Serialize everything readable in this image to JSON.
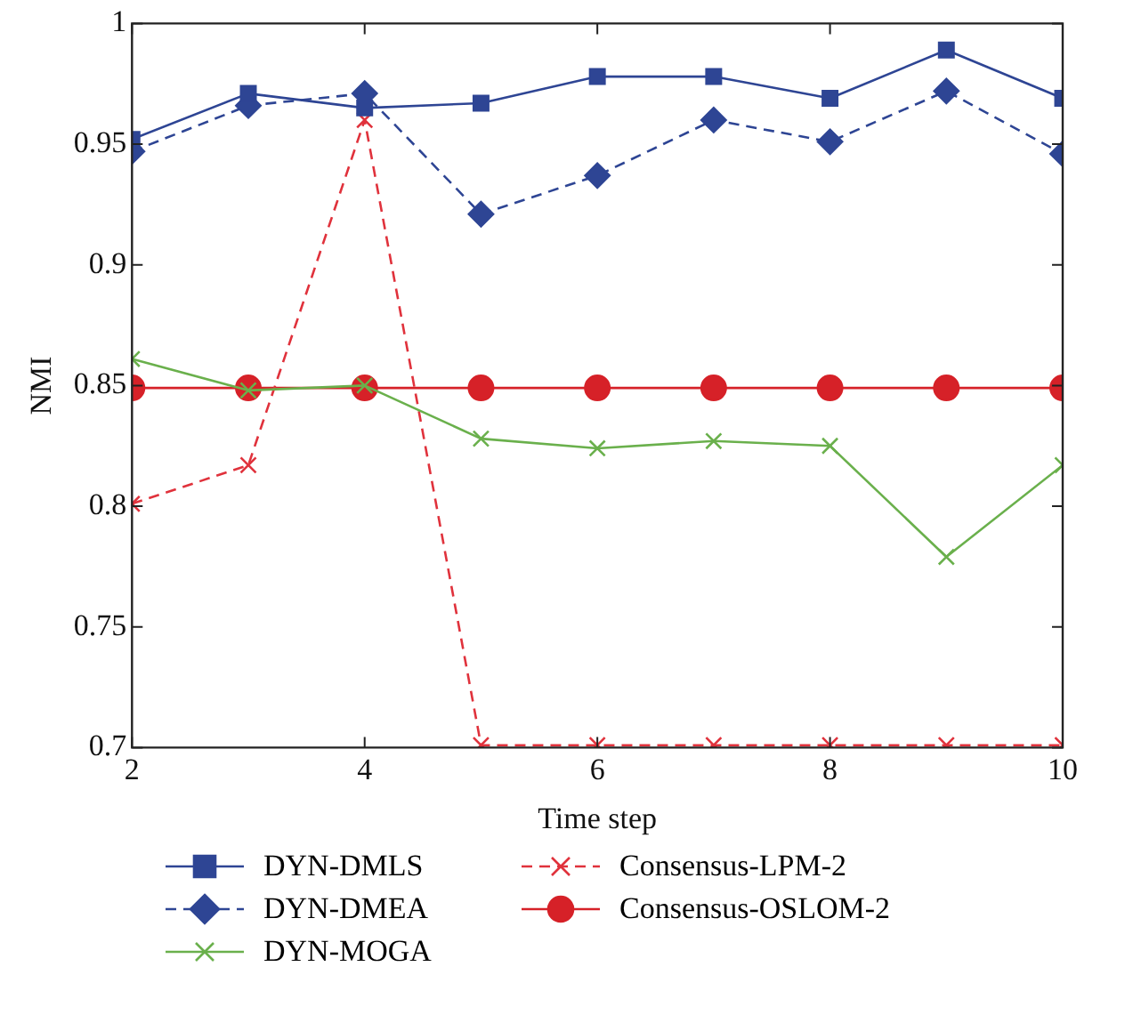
{
  "chart_data": {
    "type": "line",
    "xlabel": "Time step",
    "ylabel": "NMI",
    "x": [
      2,
      3,
      4,
      5,
      6,
      7,
      8,
      9,
      10
    ],
    "xlim": [
      2,
      10
    ],
    "xticks": [
      2,
      4,
      6,
      8,
      10
    ],
    "ylim": [
      0.7,
      1
    ],
    "yticks": [
      0.7,
      0.75,
      0.8,
      0.85,
      0.9,
      0.95,
      1
    ],
    "grid": false,
    "legend": "bottom",
    "series": [
      {
        "name": "DYN-DMLS",
        "color": "#2e4594",
        "marker": "square",
        "line_style": "solid",
        "values": [
          0.952,
          0.971,
          0.965,
          0.967,
          0.978,
          0.978,
          0.969,
          0.989,
          0.969
        ]
      },
      {
        "name": "DYN-DMEA",
        "color": "#2e4594",
        "marker": "diamond",
        "line_style": "dashed",
        "values": [
          0.947,
          0.966,
          0.971,
          0.921,
          0.937,
          0.96,
          0.951,
          0.972,
          0.946
        ]
      },
      {
        "name": "DYN-MOGA",
        "color": "#6ab04c",
        "marker": "cross",
        "line_style": "solid",
        "values": [
          0.861,
          0.848,
          0.85,
          0.828,
          0.824,
          0.827,
          0.825,
          0.779,
          0.817
        ]
      },
      {
        "name": "Consensus-LPM-2",
        "color": "#e0323c",
        "marker": "cross",
        "line_style": "dashed",
        "values": [
          0.801,
          0.817,
          0.96,
          0.701,
          0.701,
          0.701,
          0.701,
          0.701,
          0.701
        ]
      },
      {
        "name": "Consensus-OSLOM-2",
        "color": "#d62128",
        "marker": "circle",
        "line_style": "solid",
        "values": [
          0.849,
          0.849,
          0.849,
          0.849,
          0.849,
          0.849,
          0.849,
          0.849,
          0.849
        ]
      }
    ]
  }
}
